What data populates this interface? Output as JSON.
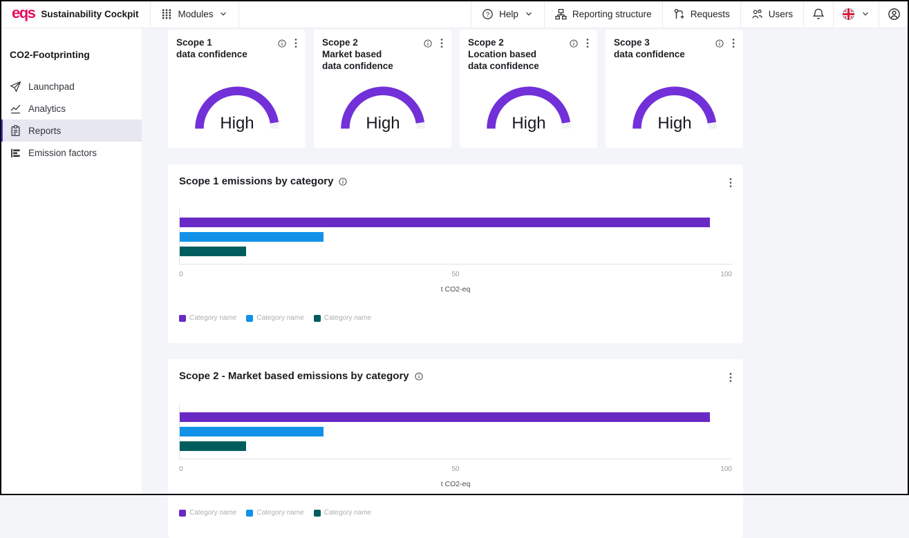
{
  "navbar": {
    "logo": "eqs",
    "title": "Sustainability Cockpit",
    "modules_label": "Modules",
    "help_label": "Help",
    "reporting_structure_label": "Reporting structure",
    "requests_label": "Requests",
    "users_label": "Users",
    "icons": {
      "modules": "grid-dots",
      "help": "question-circle",
      "reporting_structure": "org-chart",
      "requests": "pull-request-plus",
      "users": "people-group",
      "notifications": "bell",
      "language": "uk-flag",
      "account": "person-circle"
    }
  },
  "sidebar": {
    "module_title": "CO2-Footprinting",
    "items": [
      {
        "label": "Launchpad",
        "icon": "launchpad-icon",
        "active": false
      },
      {
        "label": "Analytics",
        "icon": "analytics-icon",
        "active": false
      },
      {
        "label": "Reports",
        "icon": "reports-icon",
        "active": true
      },
      {
        "label": "Emission factors",
        "icon": "emission-factors-icon",
        "active": false
      }
    ],
    "active_accent_color": "#4c3bd2",
    "active_bg_color": "#e7e7f1"
  },
  "gauges": {
    "arc_color": "#7230d8",
    "track_color": "#f2f2f4",
    "cards": [
      {
        "title": "Scope 1\ndata confidence",
        "value": "High",
        "fill_pct": 95
      },
      {
        "title": "Scope 2\nMarket based\ndata confidence",
        "value": "High",
        "fill_pct": 95
      },
      {
        "title": "Scope 2\nLocation based\ndata confidence",
        "value": "High",
        "fill_pct": 95
      },
      {
        "title": "Scope 3\ndata confidence",
        "value": "High",
        "fill_pct": 95
      }
    ]
  },
  "chart_data": [
    {
      "type": "bar",
      "orientation": "horizontal",
      "title": "Scope 1 emissions by category",
      "categories": [
        "Category name",
        "Category name",
        "Category name"
      ],
      "values": [
        96,
        26,
        12
      ],
      "colors": [
        "#6929c4",
        "#1192e8",
        "#005d5d"
      ],
      "xlabel": "t CO2-eq",
      "xlim": [
        0,
        100
      ],
      "xticks": [
        "0",
        "50",
        "100"
      ],
      "grid": false,
      "legend": [
        "Category name",
        "Category name",
        "Category name"
      ],
      "legend_position": "bottom"
    },
    {
      "type": "bar",
      "orientation": "horizontal",
      "title": "Scope 2 - Market based emissions by category",
      "categories": [
        "Category name",
        "Category name",
        "Category name"
      ],
      "values": [
        96,
        26,
        12
      ],
      "colors": [
        "#6929c4",
        "#1192e8",
        "#005d5d"
      ],
      "xlabel": "t CO2-eq",
      "xlim": [
        0,
        100
      ],
      "xticks": [
        "0",
        "50",
        "100"
      ],
      "grid": false,
      "legend": [
        "Category name",
        "Category name",
        "Category name"
      ],
      "legend_position": "bottom"
    }
  ]
}
